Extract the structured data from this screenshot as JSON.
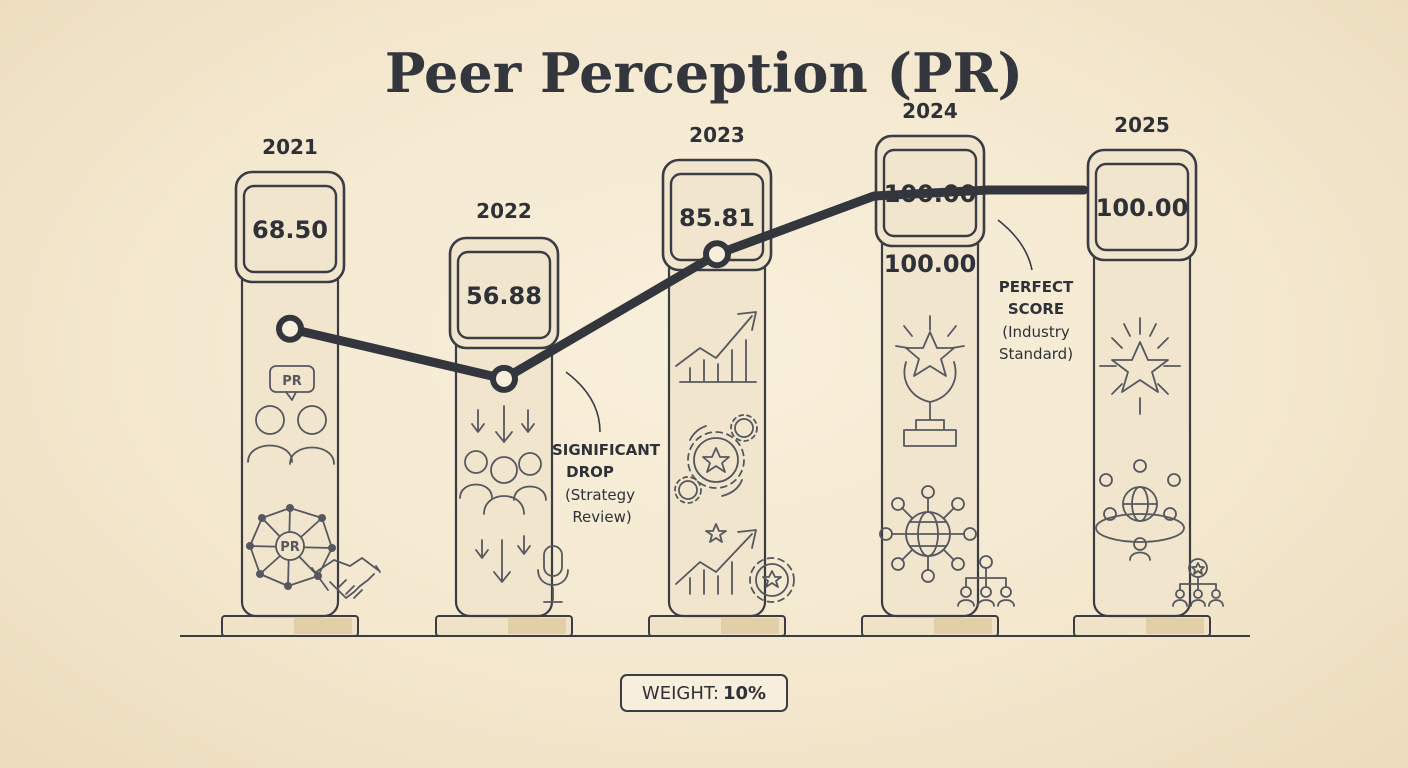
{
  "title": "Peer Perception (PR)",
  "chart_data": {
    "type": "line",
    "title": "Peer Perception (PR)",
    "categories": [
      "2021",
      "2022",
      "2023",
      "2024",
      "2025"
    ],
    "values": [
      68.5,
      56.88,
      85.81,
      100.0,
      100.0
    ],
    "value_labels": [
      "68.50",
      "56.88",
      "85.81",
      "100.00",
      "100.00"
    ],
    "extra_label_2024": "100.00",
    "ylim": [
      45,
      110
    ],
    "grid": false,
    "annotations": [
      {
        "year": "2022",
        "title_lines": [
          "SIGNIFICANT",
          "DROP"
        ],
        "sub_lines": [
          "(Strategy",
          "Review)"
        ]
      },
      {
        "year": "2024",
        "title_lines": [
          "PERFECT",
          "SCORE"
        ],
        "sub_lines": [
          "(Industry",
          "Standard)"
        ]
      }
    ]
  },
  "icons": {
    "pr_badge": "PR",
    "pr_network": "PR",
    "list": [
      "people-pr-icon",
      "network-pr-icon",
      "handshake-icon",
      "down-arrows-icon",
      "group-icon",
      "microphone-icon",
      "growth-chart-icon",
      "gears-star-icon",
      "chart-star-gear-icon",
      "trophy-icon",
      "globe-network-icon",
      "org-chart-icon",
      "star-burst-icon",
      "meeting-table-icon",
      "team-star-icon"
    ]
  },
  "weight": {
    "label": "WEIGHT:",
    "value": "10%"
  },
  "colors": {
    "line": "#33363d",
    "pillar_fill": "#f1e6cd",
    "pillar_stroke": "#3a3d44",
    "background": "#f4e8cf"
  }
}
